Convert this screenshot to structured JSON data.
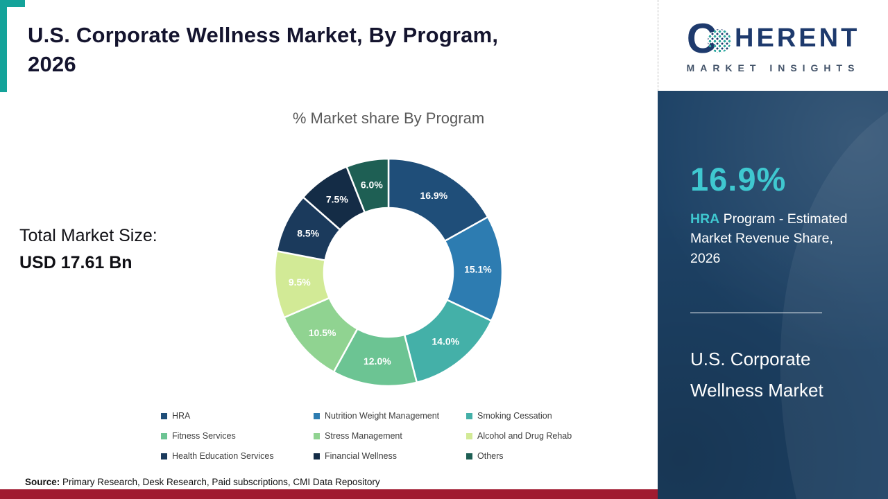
{
  "header": {
    "title_line1": "U.S. Corporate Wellness Market, By Program,",
    "title_line2": "2026"
  },
  "left_panel": {
    "total_market_label": "Total Market Size:",
    "total_market_value": "USD 17.61 Bn"
  },
  "chart_data": {
    "type": "pie",
    "subtype": "donut",
    "title": "% Market share By Program",
    "categories": [
      "HRA",
      "Nutrition Weight Management",
      "Smoking Cessation",
      "Fitness Services",
      "Stress Management",
      "Alcohol and Drug Rehab",
      "Health Education Services",
      "Financial Wellness",
      "Others"
    ],
    "values": [
      16.9,
      15.1,
      14.0,
      12.0,
      10.5,
      9.5,
      8.5,
      7.5,
      6.0
    ],
    "labels": [
      "16.9%",
      "15.1%",
      "14.0%",
      "12.0%",
      "10.5%",
      "9.5%",
      "8.5%",
      "7.5%",
      "6.0%"
    ],
    "colors": [
      "#1f4e79",
      "#2d7cb1",
      "#44b0a8",
      "#6cc493",
      "#90d391",
      "#d2ea96",
      "#1b3a5c",
      "#142c46",
      "#1e5f54"
    ],
    "unit": "%",
    "start_angle_deg": 0,
    "direction": "clockwise",
    "legend_position": "bottom"
  },
  "sidebar": {
    "logo": {
      "prefix": "C",
      "rest": "HERENT",
      "subtitle": "MARKET INSIGHTS"
    },
    "stat_value": "16.9%",
    "stat_term": "HRA",
    "stat_description": " Program - Estimated Market Revenue Share, 2026",
    "market_line1": "U.S. Corporate",
    "market_line2": "Wellness Market"
  },
  "footer": {
    "source_label": "Source:",
    "source_text": " Primary Research, Desk Research, Paid subscriptions, CMI Data Repository"
  },
  "theme": {
    "accent_teal": "#14a39a",
    "panel_navy": "#1d4266",
    "logo_navy": "#1e3a6d",
    "stat_teal": "#3fc8d0",
    "bottom_bar_red": "#a01b30"
  }
}
